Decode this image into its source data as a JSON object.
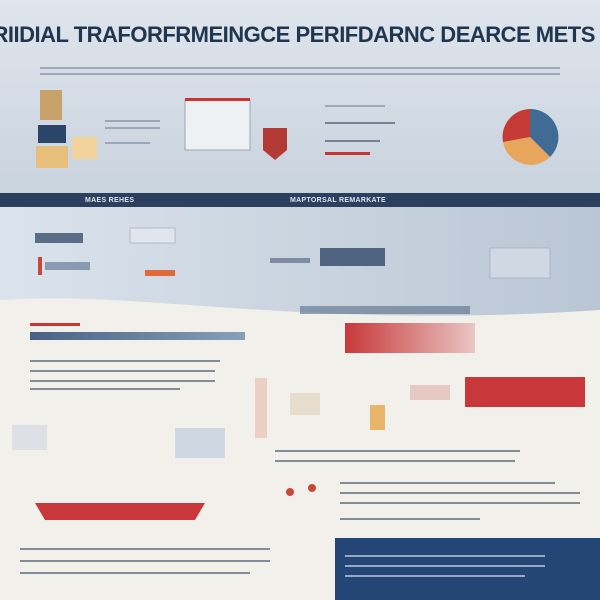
{
  "header": {
    "title": "AN TRIIDIAL TRAFORFRMEINGCE PERIFDARNC DEARCE METS RATS"
  },
  "sections": [
    {
      "label": "MAES REHES"
    },
    {
      "label": "MAPTORSAL REMARKATE"
    }
  ]
}
